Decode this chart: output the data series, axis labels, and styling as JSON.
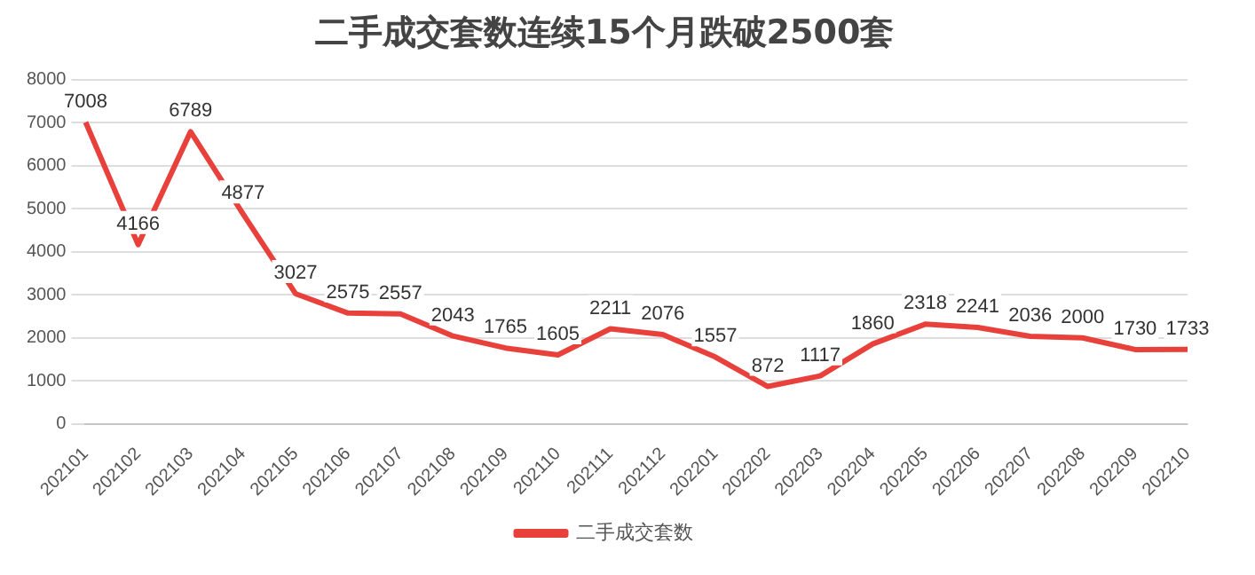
{
  "chart_data": {
    "type": "line",
    "title": "二手成交套数连续15个月跌破2500套",
    "categories": [
      "202101",
      "202102",
      "202103",
      "202104",
      "202105",
      "202106",
      "202107",
      "202108",
      "202109",
      "202110",
      "202111",
      "202112",
      "202201",
      "202202",
      "202203",
      "202204",
      "202205",
      "202206",
      "202207",
      "202208",
      "202209",
      "202210"
    ],
    "series": [
      {
        "name": "二手成交套数",
        "color": "#e8413c",
        "values": [
          7008,
          4166,
          6789,
          4877,
          3027,
          2575,
          2557,
          2043,
          1765,
          1605,
          2211,
          2076,
          1557,
          872,
          1117,
          1860,
          2318,
          2241,
          2036,
          2000,
          1730,
          1733
        ]
      }
    ],
    "ylim": [
      0,
      8000
    ],
    "yticks": [
      0,
      1000,
      2000,
      3000,
      4000,
      5000,
      6000,
      7000,
      8000
    ],
    "grid": "y",
    "legend": "bottom",
    "data_labels": true,
    "marker": "none",
    "line_style": "solid"
  }
}
